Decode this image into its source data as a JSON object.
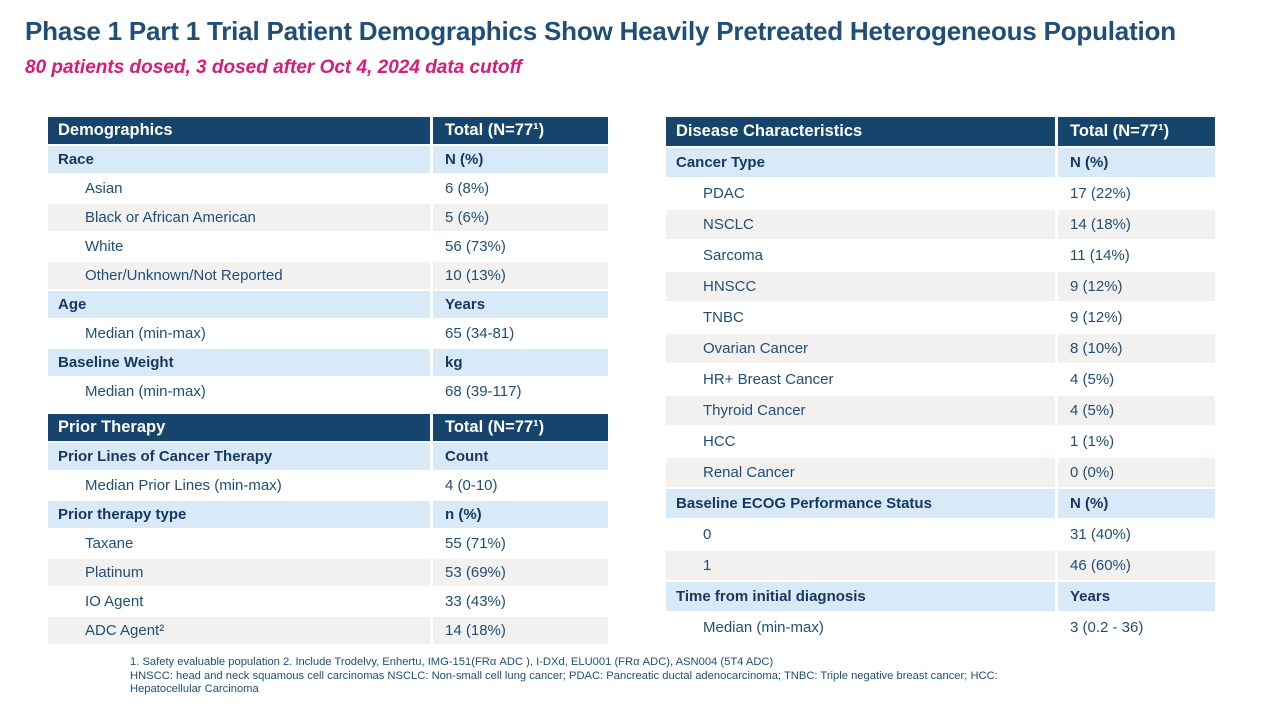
{
  "title": "Phase 1 Part 1 Trial Patient Demographics Show Heavily Pretreated Heterogeneous Population",
  "subtitle": "80 patients dosed, 3 dosed after Oct 4, 2024 data cutoff",
  "colors": {
    "title_text": "#1F4E79",
    "subtitle_text": "#D91A77",
    "table_header_bg": "#15446C",
    "table_header_text": "#ffffff",
    "subheader_bg": "#D8E9F8",
    "subheader_text": "#17375E",
    "row_alt_bg": "#F2F1EF",
    "body_text": "#1F4E79"
  },
  "tables": {
    "demographics": {
      "header": [
        "Demographics",
        "Total (N=77¹)"
      ],
      "rows": [
        {
          "type": "subheader",
          "label": "Race",
          "value": "N (%)"
        },
        {
          "type": "data",
          "label": "Asian",
          "value": "6 (8%)"
        },
        {
          "type": "data",
          "label": "Black or African American",
          "value": "5 (6%)"
        },
        {
          "type": "data",
          "label": "White",
          "value": "56 (73%)"
        },
        {
          "type": "data",
          "label": "Other/Unknown/Not Reported",
          "value": "10 (13%)"
        },
        {
          "type": "subheader",
          "label": "Age",
          "value": "Years"
        },
        {
          "type": "data",
          "label": "Median (min-max)",
          "value": "65 (34-81)"
        },
        {
          "type": "subheader",
          "label": "Baseline Weight",
          "value": "kg"
        },
        {
          "type": "data",
          "label": "Median (min-max)",
          "value": "68 (39-117)"
        }
      ]
    },
    "prior_therapy": {
      "header": [
        "Prior Therapy",
        "Total (N=77¹)"
      ],
      "rows": [
        {
          "type": "subheader",
          "label": "Prior Lines of Cancer Therapy",
          "value": "Count"
        },
        {
          "type": "data",
          "label": "Median Prior Lines (min-max)",
          "value": "4 (0-10)"
        },
        {
          "type": "subheader",
          "label": "Prior therapy type",
          "value": "n (%)"
        },
        {
          "type": "data",
          "label": "Taxane",
          "value": "55 (71%)"
        },
        {
          "type": "data",
          "label": "Platinum",
          "value": "53 (69%)"
        },
        {
          "type": "data",
          "label": "IO Agent",
          "value": "33 (43%)"
        },
        {
          "type": "data",
          "label": "ADC Agent²",
          "value": "14 (18%)"
        }
      ]
    },
    "disease_characteristics": {
      "header": [
        "Disease Characteristics",
        "Total (N=77¹)"
      ],
      "rows": [
        {
          "type": "subheader",
          "label": "Cancer Type",
          "value": "N (%)"
        },
        {
          "type": "data",
          "label": "PDAC",
          "value": "17 (22%)"
        },
        {
          "type": "data",
          "label": "NSCLC",
          "value": "14 (18%)"
        },
        {
          "type": "data",
          "label": "Sarcoma",
          "value": "11 (14%)"
        },
        {
          "type": "data",
          "label": "HNSCC",
          "value": "9 (12%)"
        },
        {
          "type": "data",
          "label": "TNBC",
          "value": "9 (12%)"
        },
        {
          "type": "data",
          "label": "Ovarian Cancer",
          "value": "8 (10%)"
        },
        {
          "type": "data",
          "label": "HR+ Breast Cancer",
          "value": "4 (5%)"
        },
        {
          "type": "data",
          "label": "Thyroid Cancer",
          "value": "4 (5%)"
        },
        {
          "type": "data",
          "label": "HCC",
          "value": "1 (1%)"
        },
        {
          "type": "data",
          "label": "Renal Cancer",
          "value": "0 (0%)"
        },
        {
          "type": "subheader",
          "label": "Baseline ECOG Performance Status",
          "value": "N (%)"
        },
        {
          "type": "data",
          "label": "0",
          "value": "31 (40%)"
        },
        {
          "type": "data",
          "label": "1",
          "value": "46 (60%)"
        },
        {
          "type": "subheader",
          "label": "Time from initial diagnosis",
          "value": "Years"
        },
        {
          "type": "data",
          "label": "Median (min-max)",
          "value": "3 (0.2 - 36)"
        }
      ]
    }
  },
  "footnotes": [
    "1. Safety evaluable population 2. Include Trodelvy, Enhertu,  IMG-151(FRα ADC ), I-DXd, ELU001 (FRα ADC), ASN004 (5T4 ADC)",
    "HNSCC: head and neck squamous cell carcinomas NSCLC: Non-small cell lung cancer; PDAC: Pancreatic ductal adenocarcinoma; TNBC: Triple negative breast cancer; HCC:",
    "Hepatocellular Carcinoma"
  ]
}
